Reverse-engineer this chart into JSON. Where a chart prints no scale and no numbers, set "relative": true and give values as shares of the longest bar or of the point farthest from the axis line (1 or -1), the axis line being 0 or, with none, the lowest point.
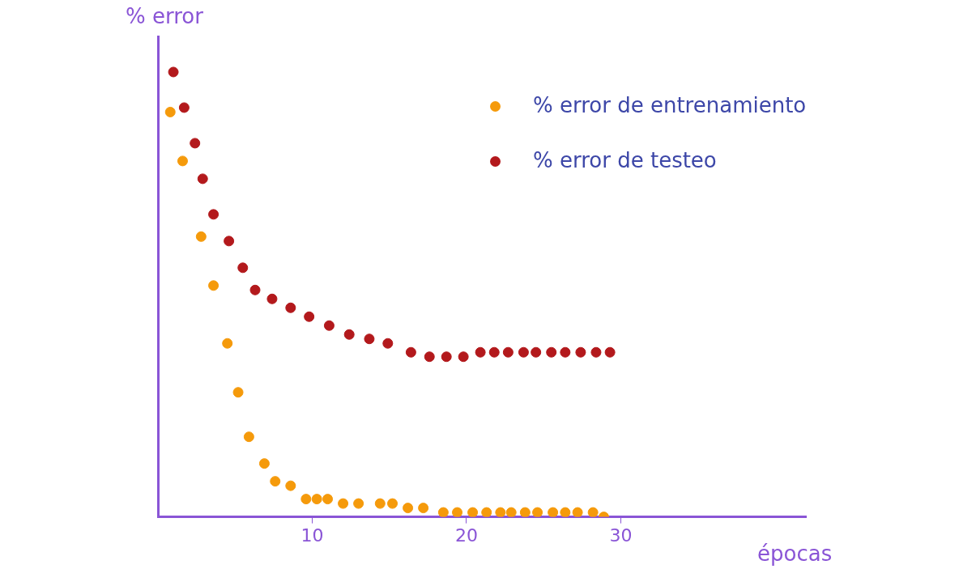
{
  "chart_data": {
    "type": "scatter",
    "xlabel": "épocas",
    "ylabel": "% error",
    "relative": true,
    "xlim": [
      0,
      42
    ],
    "xticks": [
      10,
      20,
      30
    ],
    "grid": false,
    "legend": "top right",
    "marker": "circle",
    "series": [
      {
        "name": "% error de entrenamiento",
        "color": "#f59a0b",
        "x": [
          0.8,
          1.6,
          2.8,
          3.6,
          4.5,
          5.2,
          5.9,
          6.9,
          7.6,
          8.6,
          9.6,
          10.3,
          11.0,
          12.0,
          13.0,
          14.4,
          15.2,
          16.2,
          17.2,
          18.5,
          19.4,
          20.4,
          21.3,
          22.2,
          22.9,
          23.8,
          24.6,
          25.6,
          26.4,
          27.2,
          28.2,
          28.9
        ],
        "values": [
          0.91,
          0.8,
          0.63,
          0.52,
          0.39,
          0.28,
          0.18,
          0.12,
          0.08,
          0.07,
          0.04,
          0.04,
          0.04,
          0.03,
          0.03,
          0.03,
          0.03,
          0.02,
          0.02,
          0.01,
          0.01,
          0.01,
          0.01,
          0.01,
          0.01,
          0.01,
          0.01,
          0.01,
          0.01,
          0.01,
          0.01,
          0.0
        ]
      },
      {
        "name": "% error de testeo",
        "color": "#b3191c",
        "x": [
          1.0,
          1.7,
          2.4,
          2.9,
          3.6,
          4.6,
          5.5,
          6.3,
          7.4,
          8.6,
          9.8,
          11.1,
          12.4,
          13.7,
          14.9,
          16.4,
          17.6,
          18.7,
          19.8,
          20.9,
          21.8,
          22.7,
          23.7,
          24.5,
          25.5,
          26.4,
          27.4,
          28.4,
          29.3
        ],
        "values": [
          1.0,
          0.92,
          0.84,
          0.76,
          0.68,
          0.62,
          0.56,
          0.51,
          0.49,
          0.47,
          0.45,
          0.43,
          0.41,
          0.4,
          0.39,
          0.37,
          0.36,
          0.36,
          0.36,
          0.37,
          0.37,
          0.37,
          0.37,
          0.37,
          0.37,
          0.37,
          0.37,
          0.37,
          0.37
        ]
      }
    ]
  }
}
